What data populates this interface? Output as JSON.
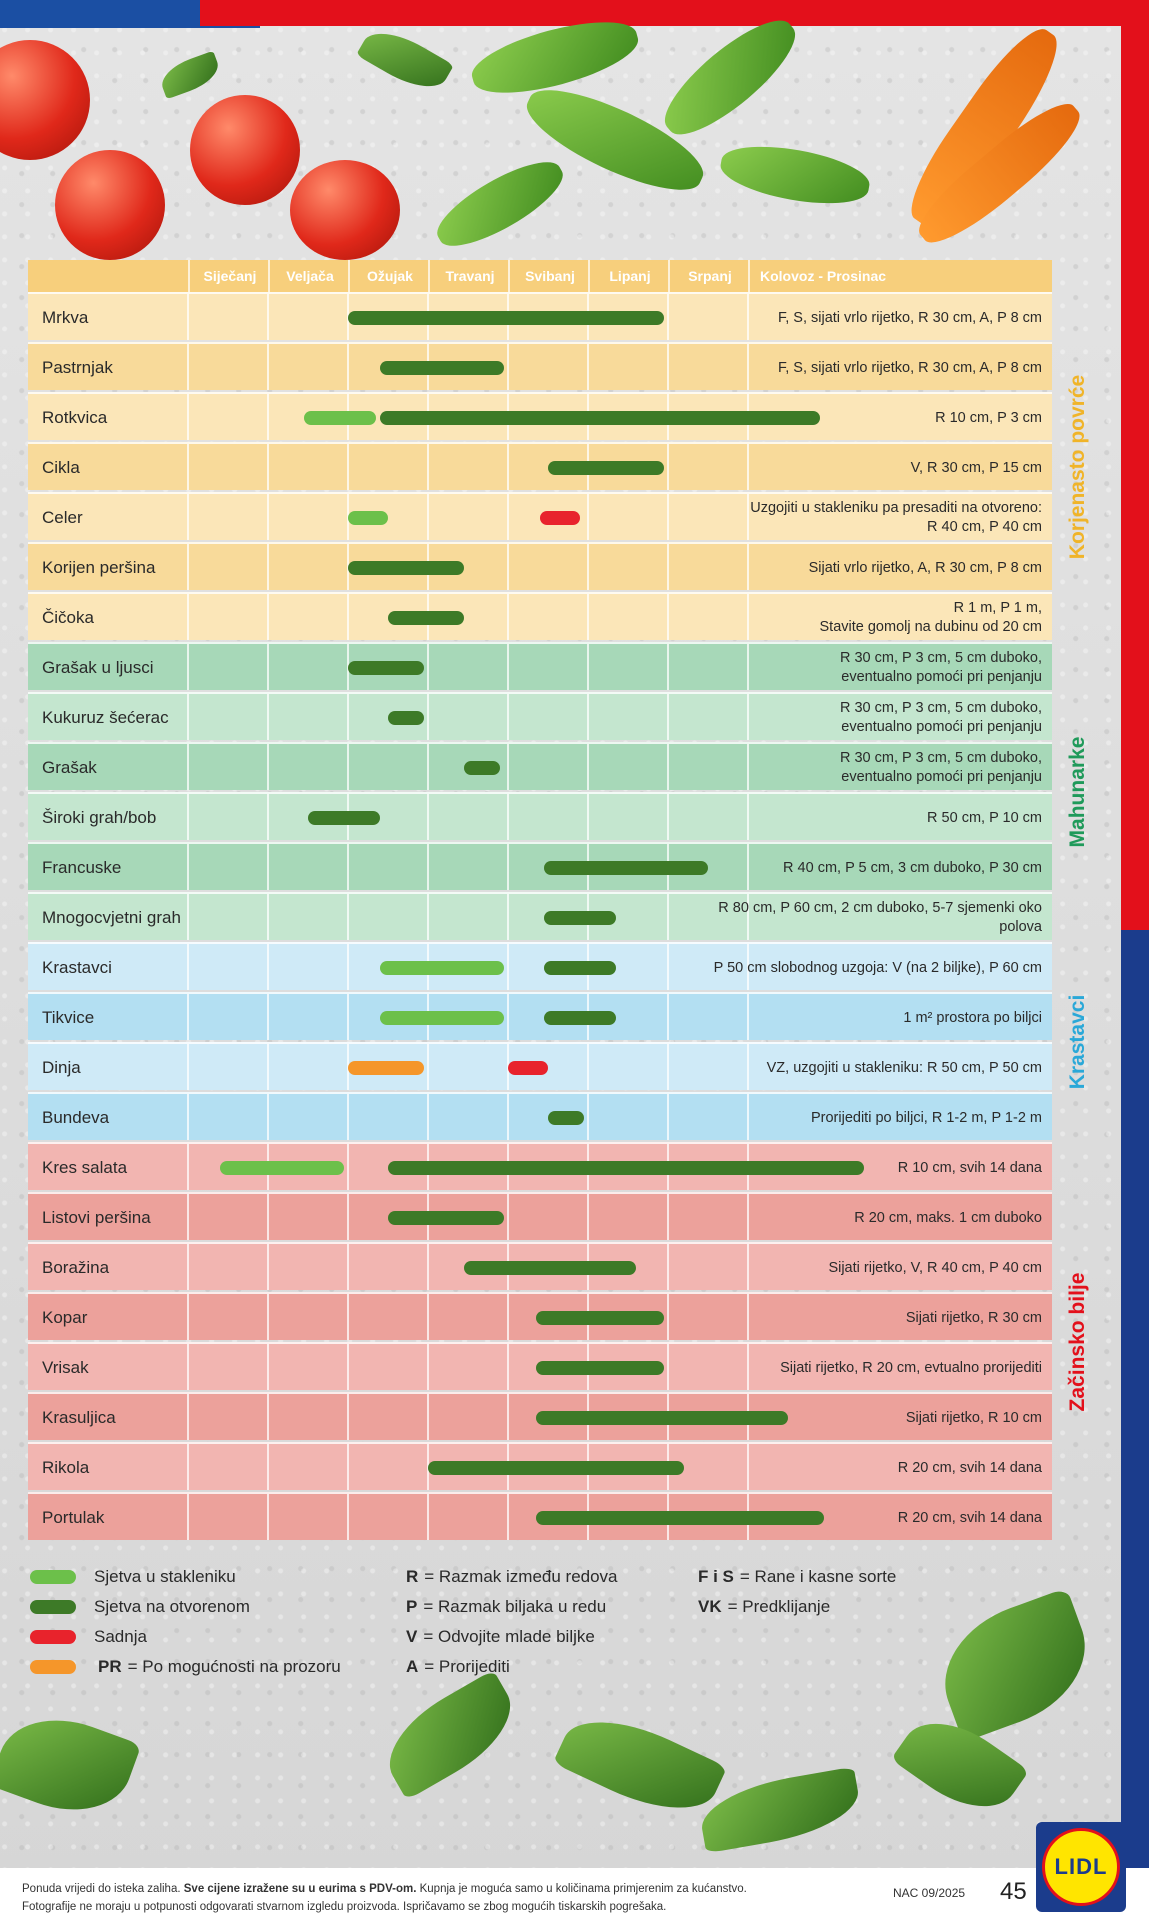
{
  "months": [
    "Siječanj",
    "Veljača",
    "Ožujak",
    "Travanj",
    "Svibanj",
    "Lipanj",
    "Srpanj",
    "Kolovoz - Prosinac"
  ],
  "colors": {
    "sowing_greenhouse": "#6cc04a",
    "sowing_outdoor": "#3d7a27",
    "planting": "#e8232c",
    "windowsill": "#f5962a",
    "root_section": "#f0b429",
    "legume_section": "#1f9a5a",
    "cucumber_section": "#2aa8d8",
    "herb_section": "#e3101b"
  },
  "sections": [
    {
      "label": "Korjenasto povrće",
      "color": "#f0b429",
      "row_start": 0,
      "row_end": 6
    },
    {
      "label": "Mahunarke",
      "color": "#1f9a5a",
      "row_start": 7,
      "row_end": 12
    },
    {
      "label": "Krastavci",
      "color": "#2aa8d8",
      "row_start": 13,
      "row_end": 16
    },
    {
      "label": "Začinsko bilje",
      "color": "#e3101b",
      "row_start": 17,
      "row_end": 24
    }
  ],
  "rows": [
    {
      "name": "Mrkva",
      "note": "F, S, sijati vrlo rijetko, R 30 cm,  A, P 8 cm",
      "bg": "#fbe6b8",
      "bars": [
        {
          "type": "green-dark",
          "start": 2.0,
          "end": 5.95
        }
      ]
    },
    {
      "name": "Pastrnjak",
      "note": "F, S, sijati vrlo rijetko, R 30 cm,  A, P 8 cm",
      "bg": "#f8da9a",
      "bars": [
        {
          "type": "green-dark",
          "start": 2.4,
          "end": 3.95
        }
      ]
    },
    {
      "name": "Rotkvica",
      "note": "R 10 cm, P 3 cm",
      "bg": "#fbe6b8",
      "bars": [
        {
          "type": "green-light",
          "start": 1.45,
          "end": 2.35
        },
        {
          "type": "green-dark",
          "start": 2.4,
          "end": 7.9
        }
      ]
    },
    {
      "name": "Cikla",
      "note": "V, R 30 cm, P 15 cm",
      "bg": "#f8da9a",
      "bars": [
        {
          "type": "green-dark",
          "start": 4.5,
          "end": 5.95
        }
      ]
    },
    {
      "name": "Celer",
      "note": "Uzgojiti u stakleniku pa presaditi na otvoreno:\nR 40 cm, P 40 cm",
      "bg": "#fbe6b8",
      "bars": [
        {
          "type": "green-light",
          "start": 2.0,
          "end": 2.5
        },
        {
          "type": "red",
          "start": 4.4,
          "end": 4.9
        }
      ]
    },
    {
      "name": "Korijen peršina",
      "note": "Sijati vrlo rijetko, A, R 30 cm, P 8 cm",
      "bg": "#f8da9a",
      "bars": [
        {
          "type": "green-dark",
          "start": 2.0,
          "end": 3.45
        }
      ]
    },
    {
      "name": "Čičoka",
      "note": "R 1 m, P 1 m,\nStavite gomolj na dubinu od 20 cm",
      "bg": "#fbe6b8",
      "bars": [
        {
          "type": "green-dark",
          "start": 2.5,
          "end": 3.45
        }
      ]
    },
    {
      "name": "Grašak u ljusci",
      "note": "R 30 cm, P 3 cm, 5 cm duboko,\neventualno pomoći pri penjanju",
      "bg": "#a7d8b8",
      "bars": [
        {
          "type": "green-dark",
          "start": 2.0,
          "end": 2.95
        }
      ]
    },
    {
      "name": "Kukuruz šećerac",
      "note": "R 30 cm, P 3 cm, 5 cm duboko,\neventualno pomoći pri penjanju",
      "bg": "#c4e6cf",
      "bars": [
        {
          "type": "green-dark",
          "start": 2.5,
          "end": 2.95
        }
      ]
    },
    {
      "name": "Grašak",
      "note": "R 30 cm, P 3 cm, 5 cm duboko,\neventualno pomoći pri penjanju",
      "bg": "#a7d8b8",
      "bars": [
        {
          "type": "green-dark",
          "start": 3.45,
          "end": 3.9
        }
      ]
    },
    {
      "name": "Široki grah/bob",
      "note": "R 50 cm, P 10 cm",
      "bg": "#c4e6cf",
      "bars": [
        {
          "type": "green-dark",
          "start": 1.5,
          "end": 2.4
        }
      ]
    },
    {
      "name": "Francuske mahune",
      "note": "R 40 cm, P 5 cm, 3 cm duboko, P 30 cm",
      "bg": "#a7d8b8",
      "bars": [
        {
          "type": "green-dark",
          "start": 4.45,
          "end": 6.5
        }
      ]
    },
    {
      "name": "Mnogocvjetni grah",
      "note": "R 80 cm, P 60 cm, 2 cm duboko, 5-7 sjemenki oko polova",
      "bg": "#c4e6cf",
      "bars": [
        {
          "type": "green-dark",
          "start": 4.45,
          "end": 5.35
        }
      ]
    },
    {
      "name": "Krastavci",
      "note": "P 50 cm slobodnog uzgoja: V (na 2 biljke), P 60 cm",
      "bg": "#cfeaf7",
      "bars": [
        {
          "type": "green-light",
          "start": 2.4,
          "end": 3.95
        },
        {
          "type": "green-dark",
          "start": 4.45,
          "end": 5.35
        }
      ]
    },
    {
      "name": "Tikvice",
      "note": "1 m² prostora po biljci",
      "bg": "#b3dff2",
      "bars": [
        {
          "type": "green-light",
          "start": 2.4,
          "end": 3.95
        },
        {
          "type": "green-dark",
          "start": 4.45,
          "end": 5.35
        }
      ]
    },
    {
      "name": "Dinja",
      "note": "VZ, uzgojiti u stakleniku: R 50 cm, P 50 cm",
      "bg": "#cfeaf7",
      "bars": [
        {
          "type": "orange",
          "start": 2.0,
          "end": 2.95
        },
        {
          "type": "red",
          "start": 4.0,
          "end": 4.5
        }
      ]
    },
    {
      "name": "Bundeva",
      "note": "Prorijediti po biljci, R 1-2 m, P 1-2 m",
      "bg": "#b3dff2",
      "bars": [
        {
          "type": "green-dark",
          "start": 4.5,
          "end": 4.95
        }
      ]
    },
    {
      "name": "Kres salata",
      "note": "R 10 cm, svih 14 dana",
      "bg": "#f2b5b1",
      "bars": [
        {
          "type": "green-light",
          "start": 0.4,
          "end": 1.95
        },
        {
          "type": "green-dark",
          "start": 2.5,
          "end": 8.45
        }
      ]
    },
    {
      "name": "Listovi peršina",
      "note": "R 20 cm, maks. 1 cm duboko",
      "bg": "#eca19b",
      "bars": [
        {
          "type": "green-dark",
          "start": 2.5,
          "end": 3.95
        }
      ]
    },
    {
      "name": "Boražina",
      "note": "Sijati rijetko, V, R 40 cm, P 40 cm",
      "bg": "#f2b5b1",
      "bars": [
        {
          "type": "green-dark",
          "start": 3.45,
          "end": 5.6
        }
      ]
    },
    {
      "name": "Kopar",
      "note": "Sijati rijetko, R 30 cm",
      "bg": "#eca19b",
      "bars": [
        {
          "type": "green-dark",
          "start": 4.35,
          "end": 5.95
        }
      ]
    },
    {
      "name": "Vrisak",
      "note": "Sijati rijetko, R 20 cm, evtualno prorijediti",
      "bg": "#f2b5b1",
      "bars": [
        {
          "type": "green-dark",
          "start": 4.35,
          "end": 5.95
        }
      ]
    },
    {
      "name": "Krasuljica",
      "note": "Sijati rijetko, R 10 cm",
      "bg": "#eca19b",
      "bars": [
        {
          "type": "green-dark",
          "start": 4.35,
          "end": 7.5
        }
      ]
    },
    {
      "name": "Rikola",
      "note": "R 20 cm, svih 14 dana",
      "bg": "#f2b5b1",
      "bars": [
        {
          "type": "green-dark",
          "start": 3.0,
          "end": 6.2
        }
      ]
    },
    {
      "name": "Portulak",
      "note": "R 20 cm, svih 14 dana",
      "bg": "#eca19b",
      "bars": [
        {
          "type": "green-dark",
          "start": 4.35,
          "end": 7.95
        }
      ]
    }
  ],
  "legend": {
    "sowing_greenhouse": "Sjetva u stakleniku",
    "sowing_outdoor": "Sjetva na otvorenom",
    "planting": "Sadnja",
    "windowsill_key": "PR",
    "windowsill": "= Po mogućnosti na prozoru",
    "abbr": [
      {
        "key": "R",
        "text": "= Razmak između redova"
      },
      {
        "key": "P",
        "text": "= Razmak biljaka u redu"
      },
      {
        "key": "V",
        "text": "= Odvojite mlade biljke"
      },
      {
        "key": "A",
        "text": "= Prorijediti"
      },
      {
        "key": "F i S",
        "text": "= Rane i kasne sorte"
      },
      {
        "key": "VK",
        "text": "= Predklijanje"
      }
    ]
  },
  "footer": {
    "line1_a": "Ponuda vrijedi do isteka zaliha.",
    "line1_b": "Sve cijene izražene su u eurima s PDV-om.",
    "line1_c": "Kupnja je moguća samo u količinama primjerenim za kućanstvo.",
    "line2": "Fotografije ne moraju u potpunosti odgovarati stvarnom izgledu proizvoda. Ispričavamo se zbog mogućih tiskarskih pogrešaka.",
    "code": "NAC 09/2025",
    "page": "45",
    "logo": "LIDL"
  }
}
